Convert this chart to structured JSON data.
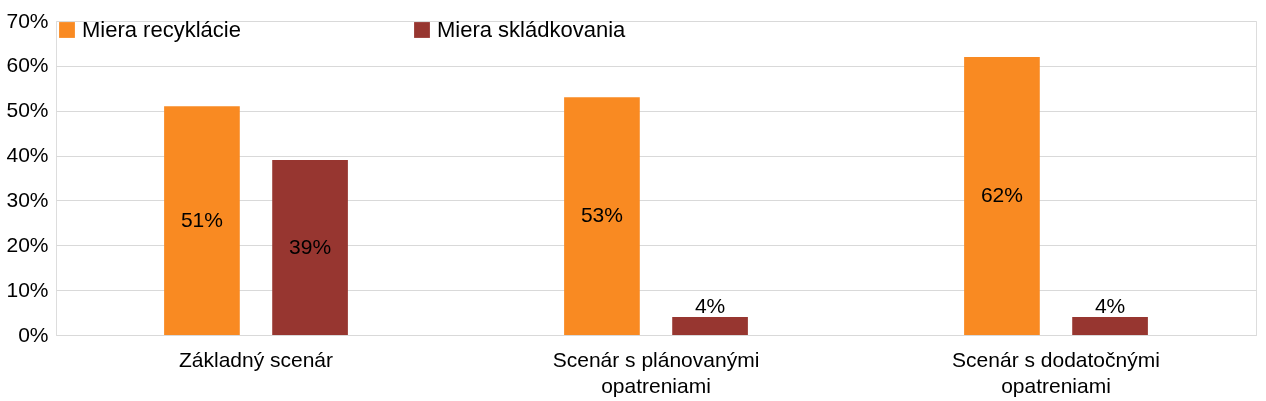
{
  "chart_data": {
    "type": "bar",
    "categories": [
      "Základný scenár",
      "Scenár s plánovanými opatreniami",
      "Scenár s dodatočnými opatreniami"
    ],
    "series": [
      {
        "name": "Miera recyklácie",
        "color": "#f98a22",
        "values": [
          51,
          53,
          62
        ],
        "value_labels": [
          "51%",
          "53%",
          "62%"
        ]
      },
      {
        "name": "Miera skládkovania",
        "color": "#973630",
        "values": [
          39,
          4,
          4
        ],
        "value_labels": [
          "39%",
          "4%",
          "4%"
        ]
      }
    ],
    "ylim": [
      0,
      70
    ],
    "yticks": [
      {
        "value": 0,
        "label": "0%"
      },
      {
        "value": 10,
        "label": "10%"
      },
      {
        "value": 20,
        "label": "20%"
      },
      {
        "value": 30,
        "label": "30%"
      },
      {
        "value": 40,
        "label": "40%"
      },
      {
        "value": 50,
        "label": "50%"
      },
      {
        "value": 60,
        "label": "60%"
      },
      {
        "value": 70,
        "label": "70%"
      }
    ],
    "grid": "y",
    "legend": "top"
  }
}
